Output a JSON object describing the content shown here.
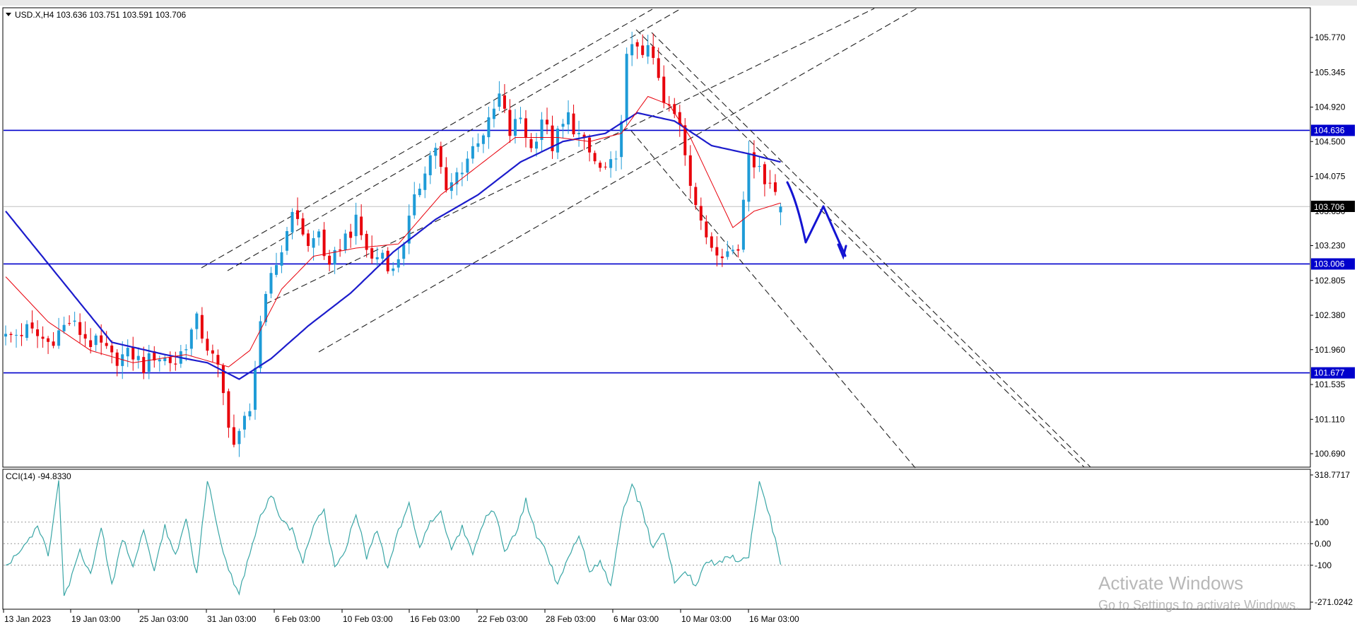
{
  "header": {
    "symbol_info": "USD.X,H4  103.636 103.751 103.591 103.706"
  },
  "indicator": {
    "label": "CCI(14) -94.8330"
  },
  "price_axis": {
    "ticks": [
      "105.770",
      "105.345",
      "104.920",
      "104.500",
      "104.075",
      "103.650",
      "103.230",
      "102.805",
      "102.380",
      "101.960",
      "101.535",
      "101.110",
      "100.690"
    ],
    "current_price": "103.706",
    "level_labels": [
      "104.636",
      "103.006",
      "101.677"
    ]
  },
  "cci_axis": {
    "ticks": [
      "318.7717",
      "100",
      "0.00",
      "-100",
      "-271.0242"
    ]
  },
  "time_axis": {
    "labels": [
      "13 Jan 2023",
      "19 Jan 03:00",
      "25 Jan 03:00",
      "31 Jan 03:00",
      "6 Feb 03:00",
      "10 Feb 03:00",
      "16 Feb 03:00",
      "22 Feb 03:00",
      "28 Feb 03:00",
      "6 Mar 03:00",
      "10 Mar 03:00",
      "16 Mar 03:00"
    ]
  },
  "watermark": {
    "line1": "Activate Windows",
    "line2": "Go to Settings to activate Windows."
  },
  "colors": {
    "bull": "#1e9bd7",
    "bear": "#e8000b",
    "ma_fast": "#e8000b",
    "ma_slow": "#1c1ccc",
    "level": "#0000cc",
    "cci": "#3aa6a6",
    "forecast": "#1414d2"
  },
  "chart_data": {
    "type": "candlestick",
    "symbol": "USD.X",
    "timeframe": "H4",
    "ohlc_last": {
      "open": 103.636,
      "high": 103.751,
      "low": 103.591,
      "close": 103.706
    },
    "ylim": [
      100.5,
      106.1
    ],
    "horizontal_levels": [
      104.636,
      103.006,
      101.677
    ],
    "current_price": 103.706,
    "x_labels": [
      "13 Jan 2023",
      "19 Jan 03:00",
      "25 Jan 03:00",
      "31 Jan 03:00",
      "6 Feb 03:00",
      "10 Feb 03:00",
      "16 Feb 03:00",
      "22 Feb 03:00",
      "28 Feb 03:00",
      "6 Mar 03:00",
      "10 Mar 03:00",
      "16 Mar 03:00"
    ],
    "close_path_keypoints": [
      [
        0,
        102.1
      ],
      [
        4,
        102.2
      ],
      [
        8,
        102.05
      ],
      [
        12,
        102.3
      ],
      [
        16,
        102.05
      ],
      [
        18,
        102.0
      ],
      [
        20,
        101.85
      ],
      [
        24,
        101.9
      ],
      [
        26,
        101.75
      ],
      [
        28,
        101.9
      ],
      [
        30,
        101.85
      ],
      [
        32,
        101.8
      ],
      [
        34,
        102.05
      ],
      [
        36,
        102.3
      ],
      [
        38,
        102.0
      ],
      [
        40,
        101.7
      ],
      [
        42,
        101.1
      ],
      [
        43,
        100.8
      ],
      [
        44,
        100.9
      ],
      [
        46,
        101.3
      ],
      [
        48,
        102.2
      ],
      [
        50,
        102.9
      ],
      [
        52,
        103.15
      ],
      [
        53,
        103.5
      ],
      [
        55,
        103.6
      ],
      [
        57,
        103.2
      ],
      [
        59,
        103.4
      ],
      [
        61,
        102.9
      ],
      [
        63,
        103.25
      ],
      [
        66,
        103.5
      ],
      [
        69,
        103.05
      ],
      [
        71,
        103.15
      ],
      [
        73,
        102.9
      ],
      [
        75,
        103.3
      ],
      [
        77,
        103.75
      ],
      [
        79,
        104.2
      ],
      [
        81,
        104.45
      ],
      [
        83,
        103.85
      ],
      [
        85,
        104.1
      ],
      [
        87,
        104.3
      ],
      [
        89,
        104.55
      ],
      [
        91,
        104.7
      ],
      [
        93,
        105.05
      ],
      [
        95,
        104.6
      ],
      [
        97,
        104.8
      ],
      [
        99,
        104.4
      ],
      [
        101,
        104.8
      ],
      [
        103,
        104.45
      ],
      [
        106,
        104.8
      ],
      [
        109,
        104.45
      ],
      [
        112,
        104.15
      ],
      [
        115,
        104.2
      ],
      [
        117,
        105.5
      ],
      [
        119,
        105.7
      ],
      [
        122,
        105.5
      ],
      [
        124,
        104.95
      ],
      [
        127,
        104.75
      ],
      [
        129,
        104.05
      ],
      [
        131,
        103.45
      ],
      [
        133,
        103.25
      ],
      [
        136,
        103.15
      ],
      [
        138,
        103.2
      ],
      [
        140,
        104.45
      ],
      [
        142,
        104.1
      ],
      [
        144,
        104.05
      ],
      [
        146,
        103.706
      ]
    ],
    "ma_slow_keypoints": [
      [
        0,
        103.65
      ],
      [
        10,
        102.85
      ],
      [
        20,
        102.05
      ],
      [
        30,
        101.9
      ],
      [
        38,
        101.8
      ],
      [
        44,
        101.6
      ],
      [
        50,
        101.85
      ],
      [
        57,
        102.25
      ],
      [
        65,
        102.65
      ],
      [
        73,
        103.15
      ],
      [
        81,
        103.55
      ],
      [
        89,
        103.85
      ],
      [
        97,
        104.25
      ],
      [
        105,
        104.5
      ],
      [
        113,
        104.6
      ],
      [
        119,
        104.85
      ],
      [
        126,
        104.75
      ],
      [
        133,
        104.45
      ],
      [
        140,
        104.35
      ],
      [
        146,
        104.25
      ]
    ],
    "ma_fast_keypoints": [
      [
        0,
        102.85
      ],
      [
        8,
        102.3
      ],
      [
        16,
        101.95
      ],
      [
        24,
        101.8
      ],
      [
        34,
        101.9
      ],
      [
        42,
        101.75
      ],
      [
        46,
        101.95
      ],
      [
        52,
        102.7
      ],
      [
        58,
        103.1
      ],
      [
        66,
        103.2
      ],
      [
        74,
        103.25
      ],
      [
        82,
        103.85
      ],
      [
        90,
        104.25
      ],
      [
        96,
        104.55
      ],
      [
        104,
        104.55
      ],
      [
        110,
        104.5
      ],
      [
        116,
        104.6
      ],
      [
        121,
        105.05
      ],
      [
        125,
        104.95
      ],
      [
        129,
        104.55
      ],
      [
        133,
        104.0
      ],
      [
        137,
        103.45
      ],
      [
        141,
        103.65
      ],
      [
        146,
        103.75
      ]
    ],
    "cci": {
      "ylim": [
        -271.0242,
        318.7717
      ],
      "levels": [
        100,
        0,
        -100
      ],
      "last": -94.833,
      "keypoints": [
        [
          0,
          -100
        ],
        [
          4,
          0
        ],
        [
          6,
          90
        ],
        [
          8,
          -60
        ],
        [
          10,
          280
        ],
        [
          11,
          -250
        ],
        [
          14,
          -40
        ],
        [
          16,
          -150
        ],
        [
          18,
          80
        ],
        [
          20,
          -200
        ],
        [
          22,
          30
        ],
        [
          24,
          -100
        ],
        [
          26,
          60
        ],
        [
          28,
          -120
        ],
        [
          30,
          80
        ],
        [
          32,
          -60
        ],
        [
          34,
          110
        ],
        [
          36,
          -150
        ],
        [
          38,
          300
        ],
        [
          40,
          60
        ],
        [
          42,
          -120
        ],
        [
          44,
          -230
        ],
        [
          46,
          -40
        ],
        [
          48,
          120
        ],
        [
          50,
          230
        ],
        [
          52,
          100
        ],
        [
          54,
          60
        ],
        [
          56,
          -80
        ],
        [
          58,
          90
        ],
        [
          60,
          160
        ],
        [
          62,
          -120
        ],
        [
          64,
          -30
        ],
        [
          66,
          140
        ],
        [
          68,
          -60
        ],
        [
          70,
          60
        ],
        [
          72,
          -120
        ],
        [
          74,
          60
        ],
        [
          76,
          190
        ],
        [
          78,
          -30
        ],
        [
          80,
          100
        ],
        [
          82,
          160
        ],
        [
          84,
          -30
        ],
        [
          86,
          80
        ],
        [
          88,
          -40
        ],
        [
          90,
          100
        ],
        [
          92,
          160
        ],
        [
          94,
          -30
        ],
        [
          96,
          40
        ],
        [
          98,
          200
        ],
        [
          100,
          40
        ],
        [
          102,
          -40
        ],
        [
          104,
          -200
        ],
        [
          106,
          -60
        ],
        [
          108,
          30
        ],
        [
          110,
          -120
        ],
        [
          112,
          -90
        ],
        [
          114,
          -200
        ],
        [
          116,
          120
        ],
        [
          118,
          270
        ],
        [
          120,
          150
        ],
        [
          122,
          -30
        ],
        [
          124,
          60
        ],
        [
          126,
          -180
        ],
        [
          128,
          -120
        ],
        [
          130,
          -200
        ],
        [
          132,
          -80
        ],
        [
          134,
          -100
        ],
        [
          136,
          -50
        ],
        [
          138,
          -80
        ],
        [
          140,
          -60
        ],
        [
          142,
          290
        ],
        [
          144,
          120
        ],
        [
          146,
          -95
        ]
      ]
    }
  }
}
